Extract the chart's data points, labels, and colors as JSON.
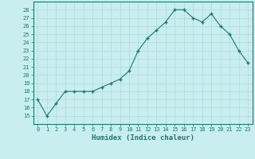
{
  "x": [
    0,
    1,
    2,
    3,
    4,
    5,
    6,
    7,
    8,
    9,
    10,
    11,
    12,
    13,
    14,
    15,
    16,
    17,
    18,
    19,
    20,
    21,
    22,
    23
  ],
  "y": [
    17,
    15,
    16.5,
    18,
    18,
    18,
    18,
    18.5,
    19,
    19.5,
    20.5,
    23,
    24.5,
    25.5,
    26.5,
    28,
    28,
    27,
    26.5,
    27.5,
    26,
    25,
    23,
    21.5
  ],
  "line_color": "#1a7a6e",
  "marker_color": "#1a7a6e",
  "bg_color": "#c8eef0",
  "grid_color": "#b0d8da",
  "xlabel": "Humidex (Indice chaleur)",
  "ylim_min": 14,
  "ylim_max": 29,
  "xlim_min": -0.5,
  "xlim_max": 23.5,
  "yticks": [
    15,
    16,
    17,
    18,
    19,
    20,
    21,
    22,
    23,
    24,
    25,
    26,
    27,
    28
  ],
  "xticks": [
    0,
    1,
    2,
    3,
    4,
    5,
    6,
    7,
    8,
    9,
    10,
    11,
    12,
    13,
    14,
    15,
    16,
    17,
    18,
    19,
    20,
    21,
    22,
    23
  ],
  "tick_label_color": "#1a7a6e",
  "xlabel_color": "#1a7a6e",
  "axis_color": "#1a7a6e",
  "tick_fontsize": 5.0,
  "xlabel_fontsize": 6.5
}
